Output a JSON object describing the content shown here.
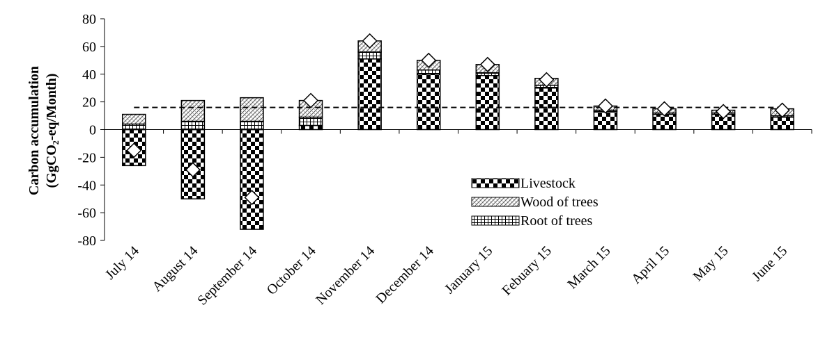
{
  "chart_data": {
    "type": "bar",
    "stacked": true,
    "categories": [
      "July 14",
      "August 14",
      "September 14",
      "October 14",
      "November 14",
      "December 14",
      "January 15",
      "Febuary 15",
      "March 15",
      "April 15",
      "May 15",
      "June 15"
    ],
    "series": [
      {
        "name": "Livestock",
        "pattern": "checker",
        "values": [
          -26,
          -50,
          -72,
          3,
          51,
          40,
          39,
          30,
          13,
          11,
          11,
          9
        ]
      },
      {
        "name": "Root of trees",
        "pattern": "grid",
        "values": [
          4,
          6,
          6,
          6,
          5,
          3,
          2,
          2,
          1,
          1,
          1,
          1
        ]
      },
      {
        "name": "Wood of trees",
        "pattern": "hatch",
        "values": [
          7,
          15,
          17,
          12,
          8,
          7,
          6,
          5,
          3,
          3,
          2,
          5
        ]
      }
    ],
    "net_markers": [
      -15,
      -29,
      -49,
      21,
      64,
      50,
      47,
      36,
      17,
      15,
      13,
      14
    ],
    "reference_line": 16,
    "ylabel_lines": [
      "Carbon accumulation",
      "(GgCO₂-eq/Month)"
    ],
    "ylim": [
      -80,
      80
    ],
    "yticks": [
      80,
      60,
      40,
      20,
      0,
      -20,
      -40,
      -60,
      -80
    ],
    "legend_order": [
      "Livestock",
      "Wood of trees",
      "Root of trees"
    ],
    "legend_position": "bottom-right inside"
  }
}
